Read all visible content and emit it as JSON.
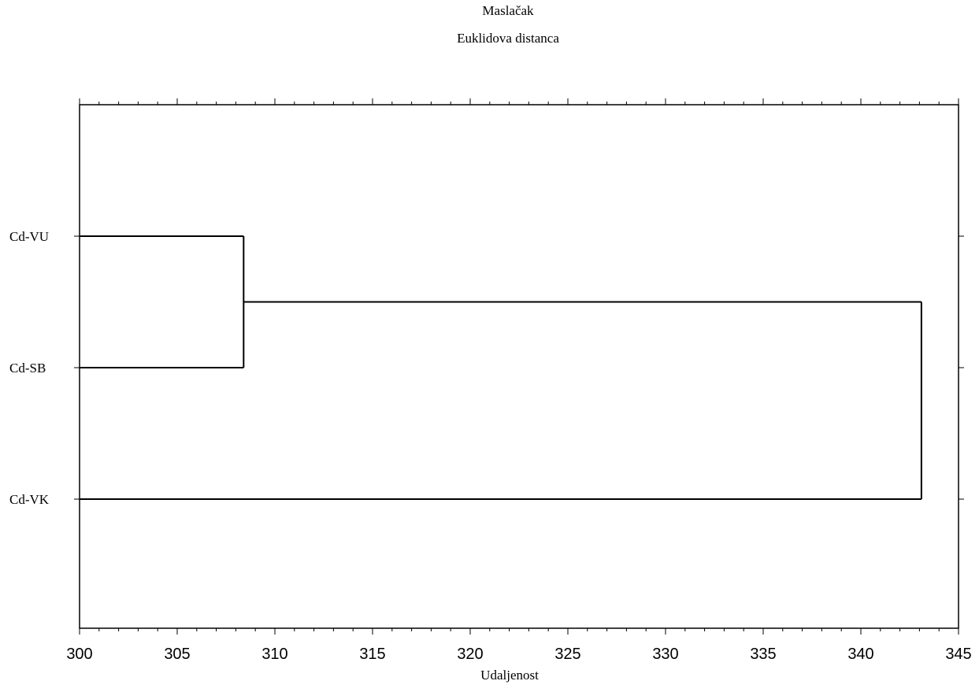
{
  "chart_data": {
    "type": "dendrogram",
    "title": "Maslačak",
    "subtitle": "Euklidova distanca",
    "xlabel": "Udaljenost",
    "ylabel": "",
    "xlim": [
      300,
      345
    ],
    "x_ticks": [
      300,
      305,
      310,
      315,
      320,
      325,
      330,
      335,
      340,
      345
    ],
    "x_tick_labels": [
      "300",
      "305",
      "310",
      "315",
      "320",
      "325",
      "330",
      "335",
      "340",
      "345"
    ],
    "leaves": [
      "Cd-VU",
      "Cd-SB",
      "Cd-VK"
    ],
    "merges": [
      {
        "left": "Cd-VU",
        "right": "Cd-SB",
        "distance": 308.4
      },
      {
        "left": "Cd-VU+Cd-SB",
        "right": "Cd-VK",
        "distance": 343.1
      }
    ],
    "grid": false,
    "line_color": "#000000"
  }
}
